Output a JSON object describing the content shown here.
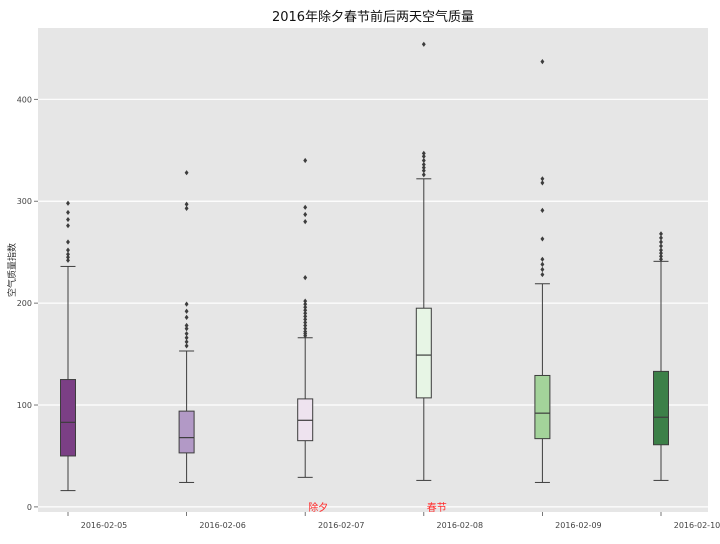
{
  "chart_data": {
    "type": "box",
    "title": "2016年除夕春节前后两天空气质量",
    "xlabel": "",
    "ylabel": "空气质量指数",
    "ylim": [
      -5,
      470
    ],
    "yticks": [
      0,
      100,
      200,
      300,
      400
    ],
    "grid": true,
    "categories": [
      "2016-02-05",
      "2016-02-06",
      "2016-02-07",
      "2016-02-08",
      "2016-02-09",
      "2016-02-10"
    ],
    "boxes": [
      {
        "category": "2016-02-05",
        "whislo": 16,
        "q1": 50,
        "med": 83,
        "q3": 125,
        "whishi": 236,
        "fliers": [
          242,
          245,
          248,
          252,
          260,
          276,
          282,
          289,
          298
        ],
        "color": "#7b3f85"
      },
      {
        "category": "2016-02-06",
        "whislo": 24,
        "q1": 53,
        "med": 68,
        "q3": 94,
        "whishi": 153,
        "fliers": [
          158,
          162,
          166,
          170,
          175,
          178,
          186,
          192,
          199,
          293,
          297,
          328
        ],
        "color": "#b299c6"
      },
      {
        "category": "2016-02-07",
        "whislo": 29,
        "q1": 65,
        "med": 85,
        "q3": 106,
        "whishi": 166,
        "fliers": [
          168,
          170,
          172,
          175,
          178,
          181,
          184,
          187,
          190,
          193,
          196,
          199,
          202,
          225,
          280,
          287,
          294,
          340
        ],
        "color": "#eee3ef"
      },
      {
        "category": "2016-02-08",
        "whislo": 26,
        "q1": 107,
        "med": 149,
        "q3": 195,
        "whishi": 322,
        "fliers": [
          326,
          330,
          333,
          336,
          340,
          344,
          347,
          454
        ],
        "color": "#e7f5e5"
      },
      {
        "category": "2016-02-09",
        "whislo": 24,
        "q1": 67,
        "med": 92,
        "q3": 129,
        "whishi": 219,
        "fliers": [
          228,
          233,
          238,
          243,
          263,
          291,
          318,
          322,
          437
        ],
        "color": "#a3d39a"
      },
      {
        "category": "2016-02-10",
        "whislo": 26,
        "q1": 61,
        "med": 88,
        "q3": 133,
        "whishi": 241,
        "fliers": [
          243,
          246,
          249,
          252,
          256,
          260,
          264,
          268
        ],
        "color": "#3c8048"
      }
    ],
    "annotations": [
      {
        "text": "除夕",
        "x": "2016-02-07",
        "y": 0,
        "color": "#ff2a2a"
      },
      {
        "text": "春节",
        "x": "2016-02-08",
        "y": 0,
        "color": "#ff2a2a"
      }
    ],
    "background": "#e6e6e6",
    "grid_color": "#ffffff"
  }
}
